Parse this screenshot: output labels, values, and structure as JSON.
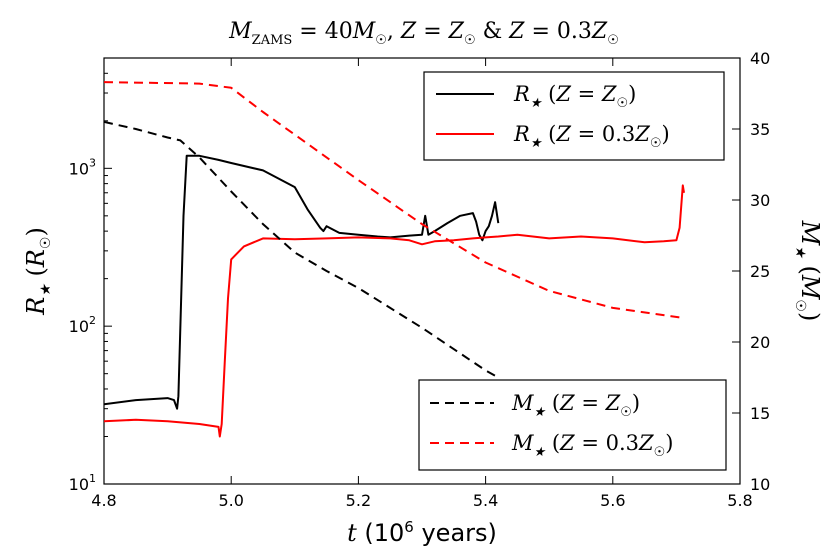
{
  "chart_data": {
    "type": "line",
    "title": "M_ZAMS = 40M_☉ , Z = Z_☉ & Z = 0.3Z_☉",
    "xlabel": "t (10^6 years)",
    "ylabel_left": "R★ (R☉)",
    "ylabel_right": "M★ (M☉)",
    "xlim": [
      4.8,
      5.8
    ],
    "ylim_left": [
      10,
      5000
    ],
    "ylim_left_scale": "log",
    "ylim_right": [
      10,
      40
    ],
    "x_ticks": [
      "4.8",
      "5.0",
      "5.2",
      "5.4",
      "5.6",
      "5.8"
    ],
    "y_left_ticks": [
      "10^1",
      "10^2",
      "10^3"
    ],
    "y_right_ticks": [
      "10",
      "15",
      "20",
      "25",
      "30",
      "35",
      "40"
    ],
    "legend_upper": {
      "placement": "top-right",
      "entries": [
        {
          "label": "R★ (Z = Z☉)",
          "color": "#000000",
          "style": "solid"
        },
        {
          "label": "R★ (Z = 0.3Z☉)",
          "color": "#ff0000",
          "style": "solid"
        }
      ]
    },
    "legend_lower": {
      "placement": "bottom-right",
      "entries": [
        {
          "label": "M★ (Z = Z☉)",
          "color": "#000000",
          "style": "dashed"
        },
        {
          "label": "M★ (Z = 0.3Z☉)",
          "color": "#ff0000",
          "style": "dashed"
        }
      ]
    },
    "series": [
      {
        "color": "#000000",
        "style": "solid",
        "axis": "left",
        "x": [
          4.8,
          4.85,
          4.9,
          4.91,
          4.915,
          4.917,
          4.925,
          4.93,
          4.95,
          4.98,
          5.0,
          5.05,
          5.1,
          5.12,
          5.14,
          5.145,
          5.15,
          5.17,
          5.2,
          5.23,
          5.25,
          5.28,
          5.3,
          5.305,
          5.31,
          5.32,
          5.34,
          5.36,
          5.38,
          5.385,
          5.39,
          5.395,
          5.4,
          5.405,
          5.41,
          5.415,
          5.42
        ],
        "y": [
          32,
          34,
          35,
          34,
          30,
          36,
          500,
          1200,
          1200,
          1130,
          1080,
          970,
          760,
          550,
          420,
          400,
          430,
          390,
          380,
          370,
          365,
          375,
          380,
          500,
          380,
          400,
          450,
          500,
          520,
          460,
          380,
          350,
          400,
          430,
          500,
          610,
          450
        ]
      },
      {
        "color": "#ff0000",
        "style": "solid",
        "axis": "left",
        "x": [
          4.8,
          4.85,
          4.9,
          4.95,
          4.98,
          4.982,
          4.985,
          4.99,
          4.995,
          5.0,
          5.02,
          5.05,
          5.1,
          5.15,
          5.2,
          5.25,
          5.28,
          5.3,
          5.32,
          5.35,
          5.38,
          5.4,
          5.42,
          5.45,
          5.5,
          5.55,
          5.6,
          5.65,
          5.68,
          5.7,
          5.705,
          5.71,
          5.712
        ],
        "y": [
          25,
          25.5,
          25,
          24,
          23,
          20,
          24,
          60,
          150,
          265,
          320,
          360,
          355,
          360,
          365,
          360,
          350,
          330,
          345,
          350,
          360,
          365,
          370,
          380,
          360,
          370,
          360,
          340,
          345,
          350,
          420,
          780,
          700
        ]
      },
      {
        "color": "#000000",
        "style": "dashed",
        "axis": "right",
        "x": [
          4.8,
          4.85,
          4.9,
          4.92,
          4.95,
          5.0,
          5.05,
          5.1,
          5.15,
          5.2,
          5.3,
          5.4,
          5.42
        ],
        "y": [
          35.5,
          35.0,
          34.4,
          34.2,
          33.0,
          30.6,
          28.3,
          26.3,
          25.0,
          23.8,
          21.0,
          18.0,
          17.5
        ]
      },
      {
        "color": "#ff0000",
        "style": "dashed",
        "axis": "right",
        "x": [
          4.8,
          4.95,
          5.0,
          5.05,
          5.1,
          5.2,
          5.3,
          5.4,
          5.5,
          5.6,
          5.71
        ],
        "y": [
          38.3,
          38.2,
          37.9,
          36.2,
          34.6,
          31.4,
          28.3,
          25.6,
          23.6,
          22.4,
          21.7
        ]
      }
    ]
  }
}
